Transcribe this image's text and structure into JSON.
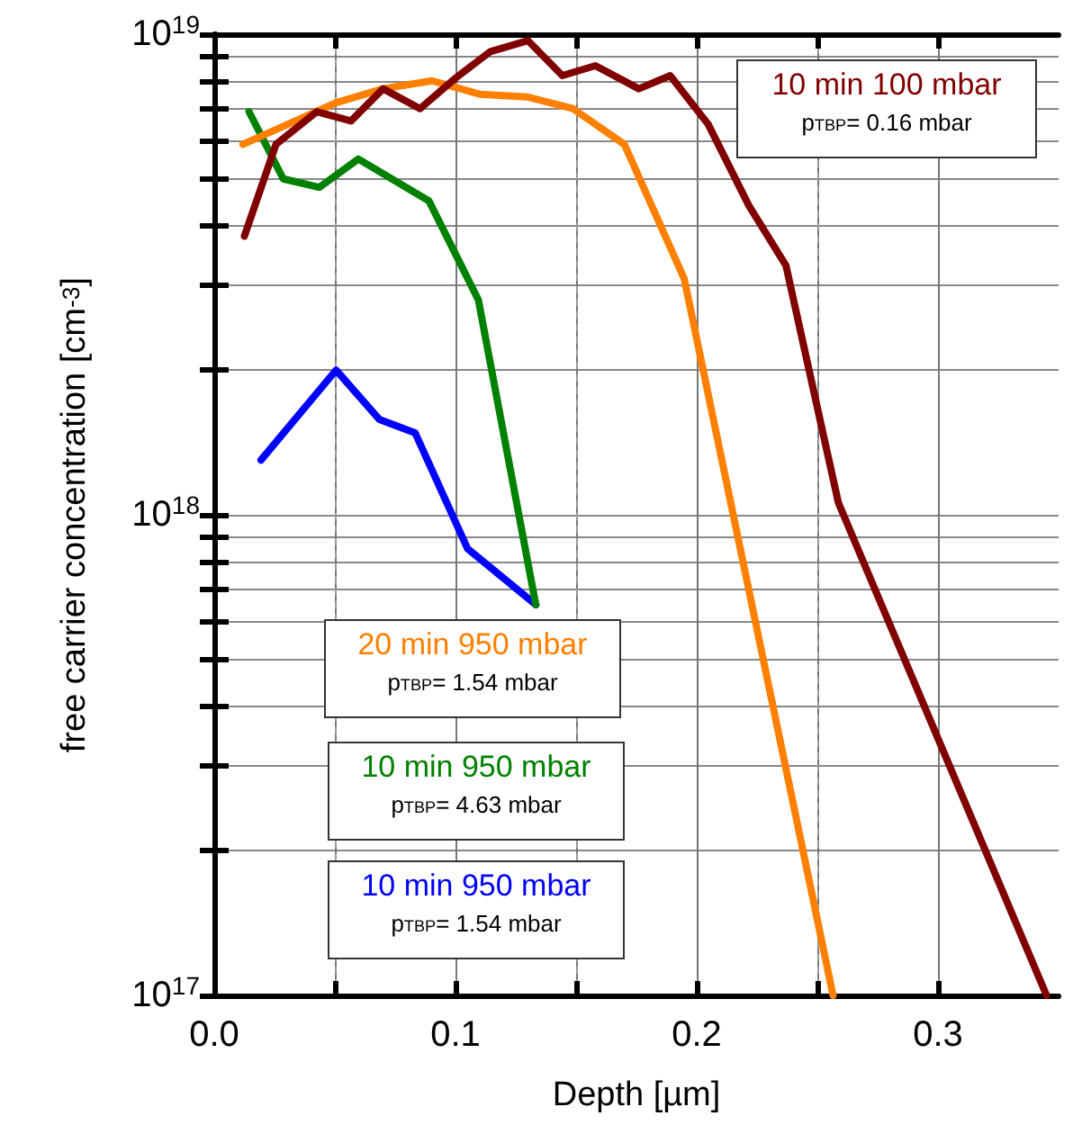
{
  "chart_data": {
    "type": "line",
    "xlabel": "Depth [µm]",
    "ylabel": "free carrier concentration [cm$^{-3}$]",
    "xlim": [
      0,
      0.35
    ],
    "xticks": [
      {
        "value": 0,
        "label": "0.0"
      },
      {
        "value": 0.05,
        "label": null
      },
      0.1,
      {
        "value": 0.15,
        "label": null
      },
      0.2,
      {
        "value": 0.25,
        "label": null
      },
      0.3
    ],
    "ylim": [
      1e+17,
      1e+19
    ],
    "yticks": [
      {
        "value": 1e+17,
        "label": "10$^{17}$"
      },
      {
        "value": 2e+17,
        "label": null
      },
      {
        "value": 3e+17,
        "label": null
      },
      {
        "value": 4e+17,
        "label": null
      },
      {
        "value": 5e+17,
        "label": null
      },
      {
        "value": 6e+17,
        "label": null
      },
      {
        "value": 7e+17,
        "label": null
      },
      {
        "value": 8e+17,
        "label": null
      },
      {
        "value": 9e+17,
        "label": null
      },
      {
        "value": 1e+18,
        "label": "10$^{18}$"
      },
      {
        "value": 2e+18,
        "label": null
      },
      {
        "value": 3e+18,
        "label": null
      },
      {
        "value": 4e+18,
        "label": null
      },
      {
        "value": 5e+18,
        "label": null
      },
      {
        "value": 6e+18,
        "label": null
      },
      {
        "value": 7e+18,
        "label": null
      },
      {
        "value": 8e+18,
        "label": null
      },
      {
        "value": 9e+18,
        "label": null
      },
      {
        "value": 1e+19,
        "label": "10$^{19}$"
      }
    ],
    "log": "y",
    "grid": true,
    "marker": "none",
    "line_style": "solid",
    "series": [
      {
        "name": "10 min 100 mbar",
        "color": "#800000",
        "x": [
          0.0125,
          0.0256,
          0.0425,
          0.0567,
          0.07,
          0.0853,
          0.1,
          0.1144,
          0.13,
          0.1443,
          0.158,
          0.176,
          0.189,
          0.2047,
          0.2216,
          0.237,
          0.2587,
          0.345
        ],
        "values": [
          3.8e+18,
          5.9e+18,
          6.9e+18,
          6.6e+18,
          7.7e+18,
          7e+18,
          8.1e+18,
          9.2e+18,
          9.7e+18,
          8.2e+18,
          8.6e+18,
          7.7e+18,
          8.2e+18,
          6.5e+18,
          4.4e+18,
          3.3e+18,
          1.06e+18,
          1e+17
        ]
      },
      {
        "name": "20 min 950 mbar",
        "color": "#ff8000",
        "x": [
          0.0119,
          0.0505,
          0.07,
          0.0903,
          0.11,
          0.13,
          0.1487,
          0.17,
          0.1948,
          0.2565
        ],
        "values": [
          5.9e+18,
          7.2e+18,
          7.7e+18,
          8e+18,
          7.5e+18,
          7.4e+18,
          7e+18,
          5.9e+18,
          3.1e+18,
          1e+17
        ]
      },
      {
        "name": "10 min 950 mbar",
        "color": "#008000",
        "x": [
          0.0144,
          0.0286,
          0.0435,
          0.0597,
          0.089,
          0.1095,
          0.1333
        ],
        "values": [
          6.9e+18,
          5e+18,
          4.8e+18,
          5.5e+18,
          4.5e+18,
          2.8e+18,
          6.5e+17
        ]
      },
      {
        "name": "10 min 950 mbar",
        "color": "#0000ff",
        "x": [
          0.0194,
          0.0505,
          0.0684,
          0.0833,
          0.105,
          0.1333
        ],
        "values": [
          1.3e+18,
          2e+18,
          1.58e+18,
          1.48e+18,
          8.5e+17,
          6.5e+17
        ]
      }
    ],
    "annotations": [
      "p$_{TBP}$= 0.16 mbar",
      "p$_{TBP}$= 1.54 mbar",
      "p$_{TBP}$= 4.63 mbar",
      "p$_{TBP}$= 1.54 mbar"
    ]
  }
}
